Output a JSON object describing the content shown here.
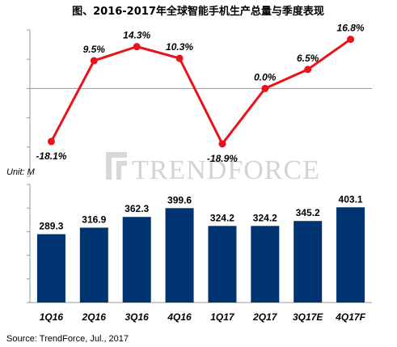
{
  "title": "图、2016-2017年全球智能手机生产总量与季度表现",
  "unit_label": "Unit: M",
  "source": "Source: TrendForce, Jul., 2017",
  "watermark": "TRENDFORCE",
  "colors": {
    "bar": "#003471",
    "line": "#e8131b",
    "axis": "#9a9a9a"
  },
  "chart_data": [
    {
      "type": "line",
      "categories": [
        "1Q16",
        "2Q16",
        "3Q16",
        "4Q16",
        "1Q17",
        "2Q17",
        "3Q17E",
        "4Q17F"
      ],
      "values": [
        -18.1,
        9.5,
        14.3,
        10.3,
        -18.9,
        0.0,
        6.5,
        16.8
      ],
      "labels": [
        "-18.1%",
        "9.5%",
        "14.3%",
        "10.3%",
        "-18.9%",
        "0.0%",
        "6.5%",
        "16.8%"
      ],
      "ylim": [
        -30,
        20
      ],
      "grid": false
    },
    {
      "type": "bar",
      "categories": [
        "1Q16",
        "2Q16",
        "3Q16",
        "4Q16",
        "1Q17",
        "2Q17",
        "3Q17E",
        "4Q17F"
      ],
      "values": [
        289.3,
        316.9,
        362.3,
        399.6,
        324.2,
        324.2,
        345.2,
        403.1
      ],
      "labels": [
        "289.3",
        "316.9",
        "362.3",
        "399.6",
        "324.2",
        "324.2",
        "345.2",
        "403.1"
      ],
      "ylabel": "Unit: M",
      "ylim": [
        0,
        500
      ],
      "grid": false
    }
  ]
}
